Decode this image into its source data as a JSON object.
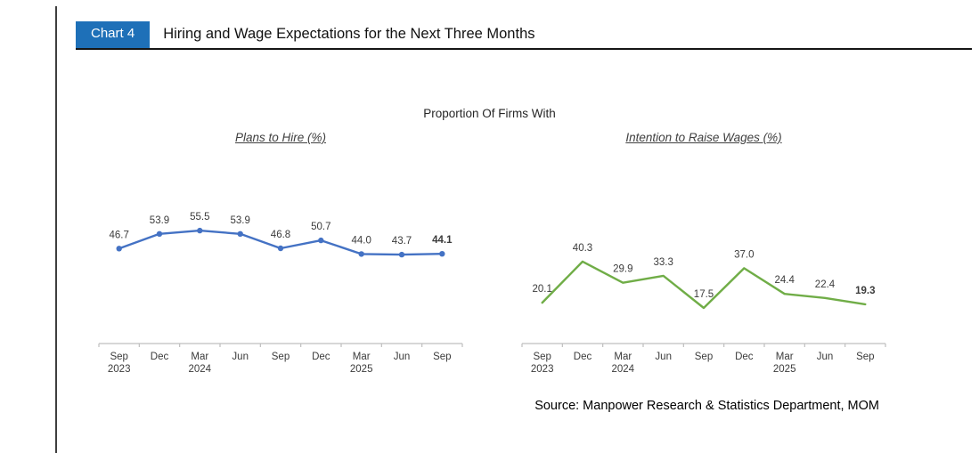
{
  "header": {
    "badge_label": "Chart 4",
    "badge_color": "#1E70B8",
    "title": "Hiring and Wage Expectations for the Next Three Months"
  },
  "main_title": "Proportion Of Firms With",
  "source_note": "Source: Manpower Research & Statistics Department, MOM",
  "chart_data": [
    {
      "type": "line",
      "title": "Plans to Hire (%)",
      "color": "#4472C4",
      "markers": true,
      "bold_last_label": true,
      "ylim": [
        0,
        70
      ],
      "grid": false,
      "legend": "none",
      "categories": [
        {
          "month": "Sep",
          "year": "2023"
        },
        {
          "month": "Dec",
          "year": ""
        },
        {
          "month": "Mar",
          "year": "2024"
        },
        {
          "month": "Jun",
          "year": ""
        },
        {
          "month": "Sep",
          "year": ""
        },
        {
          "month": "Dec",
          "year": ""
        },
        {
          "month": "Mar",
          "year": "2025"
        },
        {
          "month": "Jun",
          "year": ""
        },
        {
          "month": "Sep",
          "year": ""
        }
      ],
      "values": [
        46.7,
        53.9,
        55.5,
        53.9,
        46.8,
        50.7,
        44.0,
        43.7,
        44.1
      ],
      "value_labels": [
        "46.7",
        "53.9",
        "55.5",
        "53.9",
        "46.8",
        "50.7",
        "44.0",
        "43.7",
        "44.1"
      ]
    },
    {
      "type": "line",
      "title": "Intention to Raise Wages (%)",
      "color": "#70AD47",
      "markers": false,
      "bold_last_label": true,
      "ylim": [
        0,
        70
      ],
      "grid": false,
      "legend": "none",
      "categories": [
        {
          "month": "Sep",
          "year": "2023"
        },
        {
          "month": "Dec",
          "year": ""
        },
        {
          "month": "Mar",
          "year": "2024"
        },
        {
          "month": "Jun",
          "year": ""
        },
        {
          "month": "Sep",
          "year": ""
        },
        {
          "month": "Dec",
          "year": ""
        },
        {
          "month": "Mar",
          "year": "2025"
        },
        {
          "month": "Jun",
          "year": ""
        },
        {
          "month": "Sep",
          "year": ""
        }
      ],
      "values": [
        20.1,
        40.3,
        29.9,
        33.3,
        17.5,
        37.0,
        24.4,
        22.4,
        19.3
      ],
      "value_labels": [
        "20.1",
        "40.3",
        "29.9",
        "33.3",
        "17.5",
        "37.0",
        "24.4",
        "22.4",
        "19.3"
      ]
    }
  ],
  "style": {
    "axis_color": "#BFBFBF",
    "label_color": "#3B3B3B"
  }
}
